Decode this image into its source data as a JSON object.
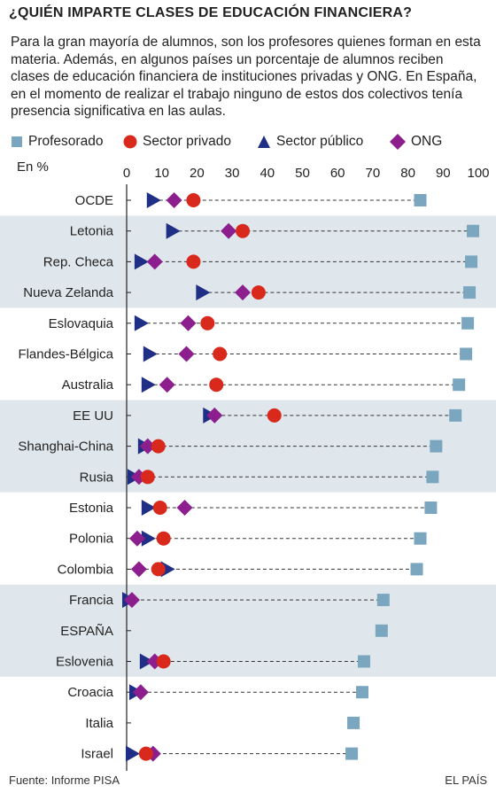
{
  "header": {
    "title": "¿QUIÉN IMPARTE CLASES DE EDUCACIÓN FINANCIERA?",
    "description": "Para la gran mayoría de alumnos, son los profesores quienes forman en esta materia. Además, en algunos países un porcentaje de alumnos reciben clases de educación financiera de instituciones privadas y ONG. En España, en el momento de realizar el trabajo ninguno de estos dos colectivos tenía presencia significativa en las aulas."
  },
  "footer": {
    "source": "Fuente: Informe PISA",
    "brand": "EL PAÍS"
  },
  "colors": {
    "profesorado": "#7aa6bf",
    "privado": "#d9291c",
    "publico": "#1f2f86",
    "ong": "#8d1e8e",
    "band": "#e0e7ec",
    "axis": "#222222",
    "dash": "#333333"
  },
  "chart_data": {
    "type": "scatter",
    "ylabel": "En %",
    "xlim": [
      0,
      100
    ],
    "xticks": [
      0,
      10,
      20,
      30,
      40,
      50,
      60,
      70,
      80,
      90,
      100
    ],
    "legend": {
      "placement": "top",
      "entries": [
        {
          "key": "profesorado",
          "name": "Profesorado",
          "shape": "square"
        },
        {
          "key": "privado",
          "name": "Sector privado",
          "shape": "circle"
        },
        {
          "key": "publico",
          "name": "Sector público",
          "shape": "triangle"
        },
        {
          "key": "ong",
          "name": "ONG",
          "shape": "diamond"
        }
      ]
    },
    "categories": [
      "OCDE",
      "Letonia",
      "Rep. Checa",
      "Nueva Zelanda",
      "Eslovaquia",
      "Flandes-Bélgica",
      "Australia",
      "EE UU",
      "Shanghai-China",
      "Rusia",
      "Estonia",
      "Polonia",
      "Colombia",
      "Francia",
      "ESPAÑA",
      "Eslovenia",
      "Croacia",
      "Italia",
      "Israel"
    ],
    "banded_groups": [
      [
        1,
        3
      ],
      [
        7,
        9
      ],
      [
        13,
        15
      ]
    ],
    "series": [
      {
        "key": "profesorado",
        "name": "Profesorado",
        "values": [
          83.5,
          98.5,
          98,
          97.5,
          97,
          96.5,
          94.5,
          93.5,
          88,
          87,
          86.5,
          83.5,
          82.5,
          73,
          72.5,
          67.5,
          67,
          64.5,
          64
        ]
      },
      {
        "key": "privado",
        "name": "Sector privado",
        "values": [
          19,
          33,
          19,
          37.5,
          23,
          26.5,
          25.5,
          42,
          9,
          6,
          9.5,
          10.5,
          9,
          null,
          null,
          10.5,
          null,
          null,
          5.5
        ]
      },
      {
        "key": "publico",
        "name": "Sector público",
        "values": [
          7.5,
          13,
          4,
          21.5,
          4,
          6.5,
          6,
          23.5,
          5,
          2,
          6,
          6,
          11.5,
          0.5,
          null,
          5.5,
          2.5,
          null,
          1.5
        ]
      },
      {
        "key": "ong",
        "name": "ONG",
        "values": [
          13.5,
          29,
          8,
          33,
          17.5,
          17,
          11.5,
          25,
          6,
          3.5,
          16.5,
          3,
          3.5,
          1.5,
          null,
          8,
          4,
          null,
          7.5
        ]
      }
    ]
  }
}
